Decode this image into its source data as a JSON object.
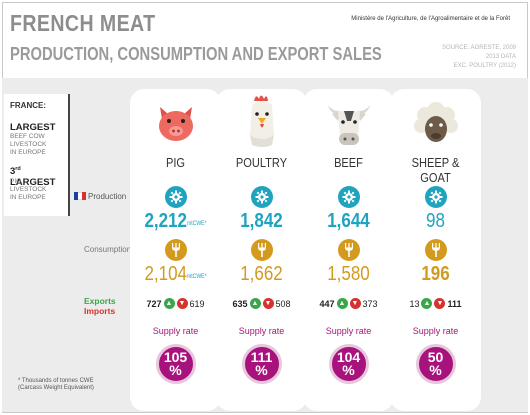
{
  "header": {
    "title": "FRENCH MEAT",
    "subtitle": "PRODUCTION, CONSUMPTION AND EXPORT SALES",
    "ministry": "Ministère de l'Agriculture, de l'Agroalimentaire et de la Forêt",
    "source_lines": [
      "SOURCE: AGRESTE, 2009",
      "2013 DATA",
      "EXC. POULTRY (2012)"
    ]
  },
  "sidebar": {
    "heading": "FRANCE:",
    "fact1_title": "LARGEST",
    "fact1_lines": [
      "BEEF COW",
      "LIVESTOCK",
      "IN EUROPE"
    ],
    "fact2_rank": "3",
    "fact2_sup": "rd",
    "fact2_title": "LARGEST",
    "fact2_lines": [
      "PIG",
      "LIVESTOCK",
      "IN EUROPE"
    ]
  },
  "labels": {
    "production": "Production",
    "consumption": "Consumption",
    "exports": "Exports",
    "imports": "Imports",
    "supply_rate": "Supply rate",
    "unit": "mtCWE*",
    "footnote_lines": [
      "* Thousands of tonnes CWE",
      "(Carcass Weight Equivalent)"
    ]
  },
  "colors": {
    "teal": "#1fa3bf",
    "gold": "#d49a1e",
    "export_green": "#3aa64a",
    "import_red": "#d6322f",
    "magenta": "#a8127c"
  },
  "icons": {
    "production": "gear-icon",
    "consumption": "fork-icon",
    "exports": "arrow-up-icon",
    "imports": "arrow-down-icon"
  },
  "columns": [
    {
      "name": "PIG",
      "animal": "pig-icon",
      "production": "2,212",
      "consumption": "2,104",
      "exports": "727",
      "imports": "619",
      "supply_rate": "105",
      "show_unit": true,
      "prod_bold": true,
      "cons_bold": false,
      "exp_bold": true,
      "imp_bold": false
    },
    {
      "name": "POULTRY",
      "animal": "rooster-icon",
      "production": "1,842",
      "consumption": "1,662",
      "exports": "635",
      "imports": "508",
      "supply_rate": "111",
      "show_unit": false,
      "prod_bold": true,
      "cons_bold": false,
      "exp_bold": true,
      "imp_bold": false
    },
    {
      "name": "BEEF",
      "animal": "cow-icon",
      "production": "1,644",
      "consumption": "1,580",
      "exports": "447",
      "imports": "373",
      "supply_rate": "104",
      "show_unit": false,
      "prod_bold": true,
      "cons_bold": false,
      "exp_bold": true,
      "imp_bold": false
    },
    {
      "name": "SHEEP & GOAT",
      "animal": "sheep-icon",
      "production": "98",
      "consumption": "196",
      "exports": "13",
      "imports": "111",
      "supply_rate": "50",
      "show_unit": false,
      "prod_bold": false,
      "cons_bold": true,
      "exp_bold": false,
      "imp_bold": true
    }
  ]
}
